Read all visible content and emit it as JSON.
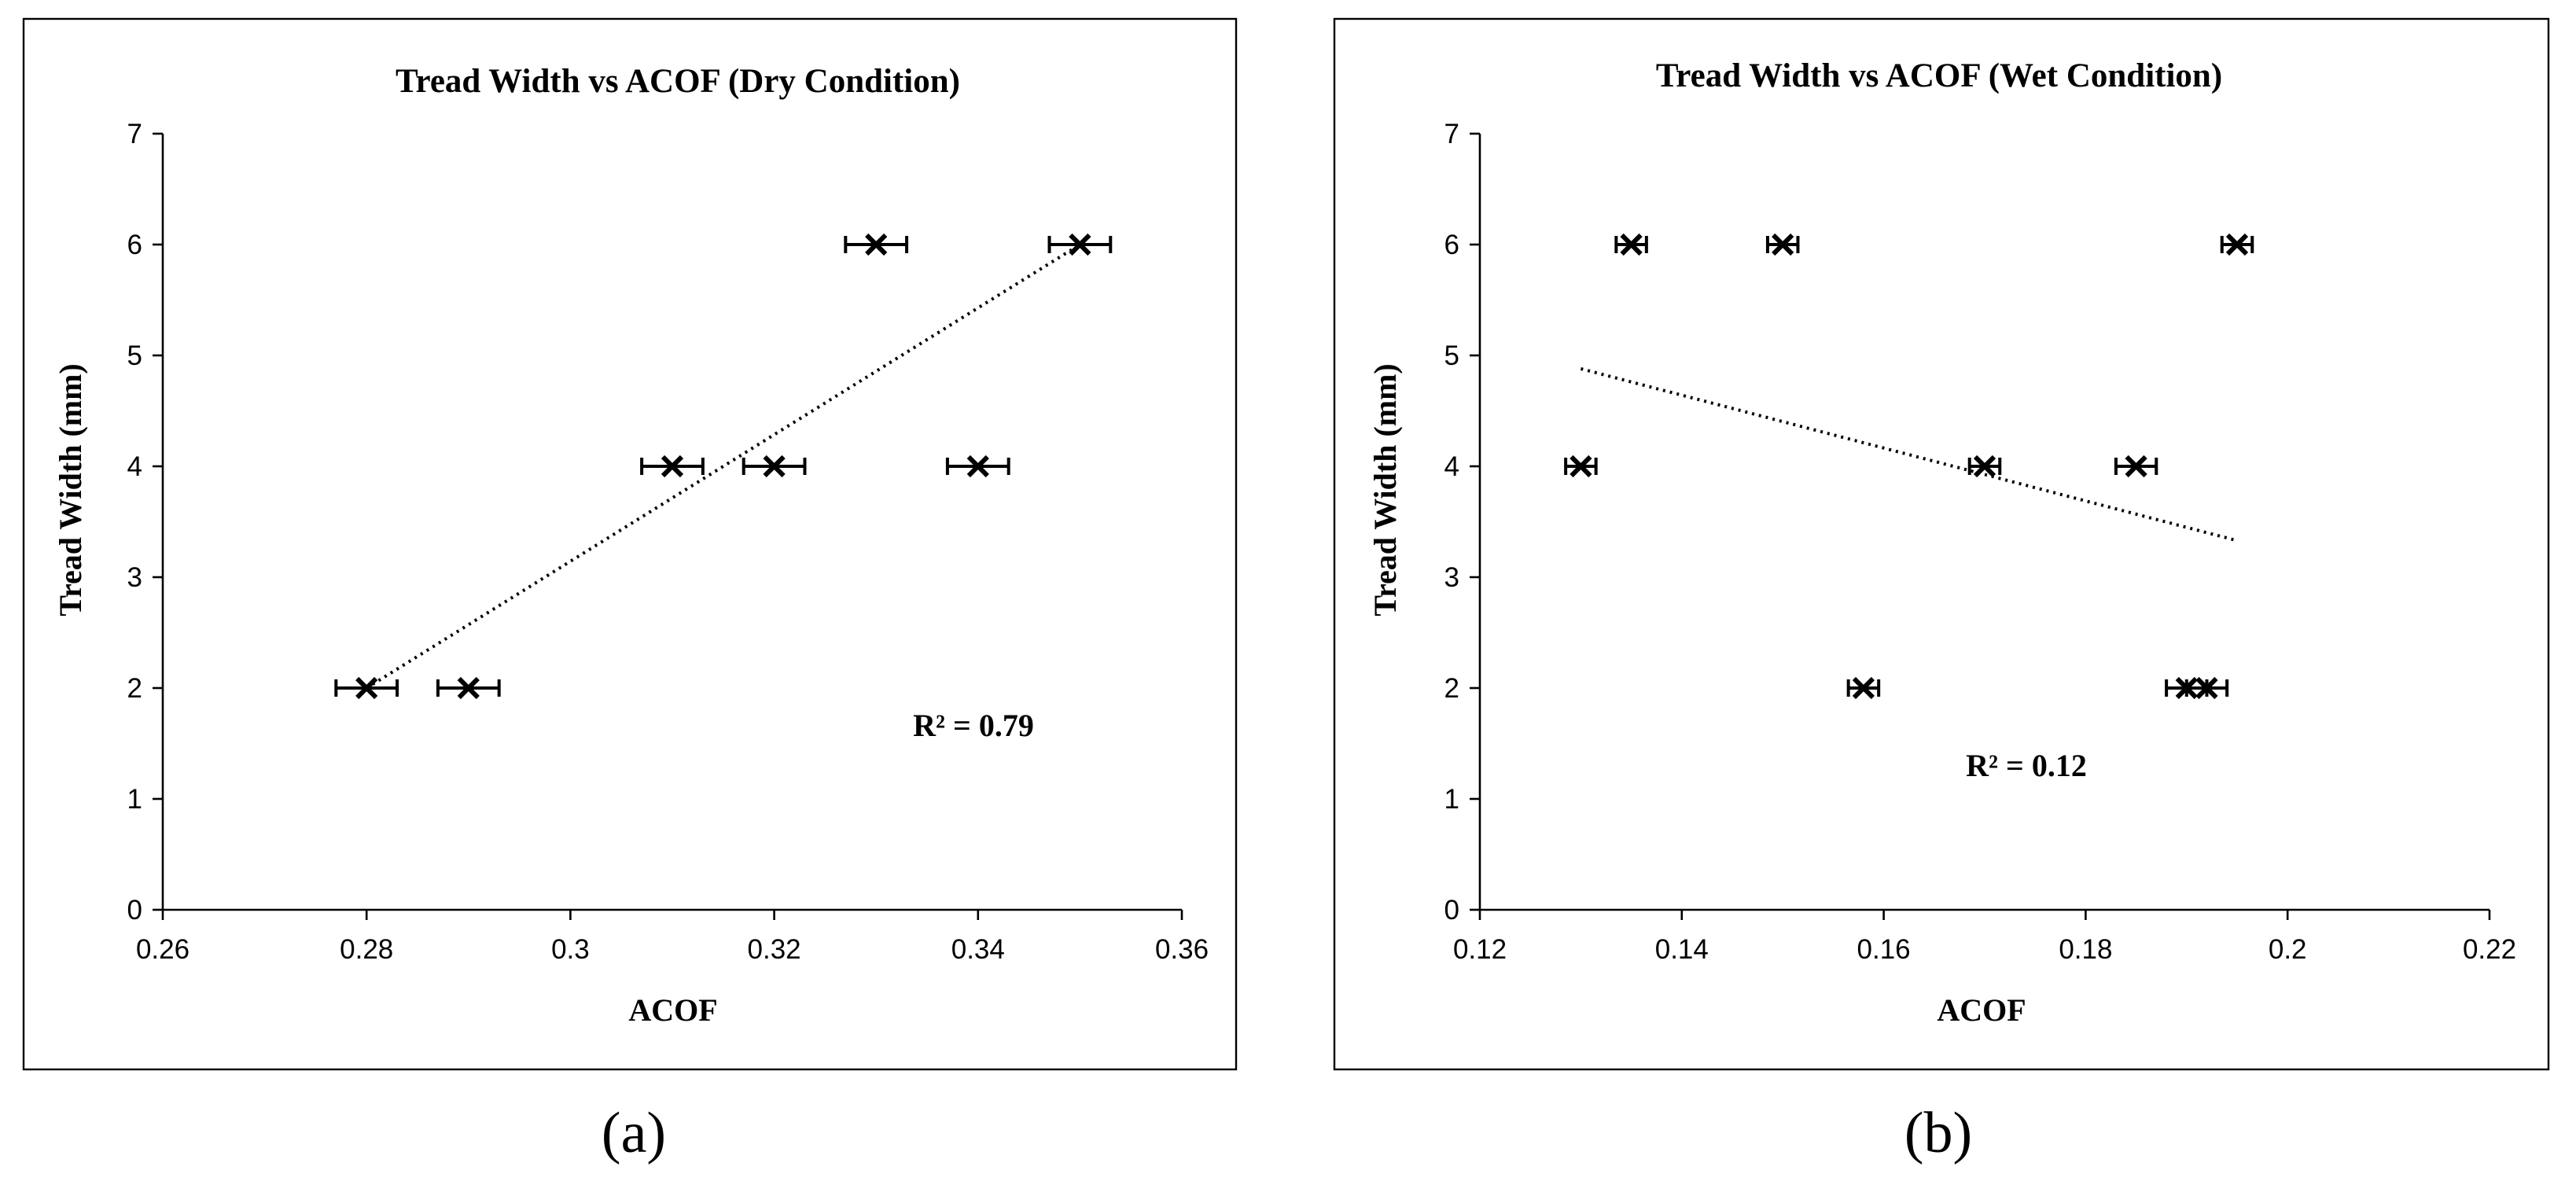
{
  "chart_data": [
    {
      "type": "scatter",
      "title": "Tread Width vs ACOF (Dry Condition)",
      "xlabel": "ACOF",
      "ylabel": "Tread Width (mm)",
      "xlim": [
        0.26,
        0.36
      ],
      "ylim": [
        0,
        7
      ],
      "xticks": [
        "0.26",
        "0.28",
        "0.3",
        "0.32",
        "0.34",
        "0.36"
      ],
      "yticks": [
        "0",
        "1",
        "2",
        "3",
        "4",
        "5",
        "6",
        "7"
      ],
      "points": [
        {
          "x": 0.28,
          "y": 2,
          "xerr": 0.003
        },
        {
          "x": 0.29,
          "y": 2,
          "xerr": 0.003
        },
        {
          "x": 0.31,
          "y": 4,
          "xerr": 0.003
        },
        {
          "x": 0.32,
          "y": 4,
          "xerr": 0.003
        },
        {
          "x": 0.34,
          "y": 4,
          "xerr": 0.003
        },
        {
          "x": 0.33,
          "y": 6,
          "xerr": 0.003
        },
        {
          "x": 0.35,
          "y": 6,
          "xerr": 0.003
        }
      ],
      "trendline": {
        "x": [
          0.28,
          0.35
        ],
        "y": [
          2.0,
          6.0
        ]
      },
      "r_squared": "R² = 0.79",
      "caption": "(a)"
    },
    {
      "type": "scatter",
      "title": "Tread Width vs ACOF (Wet Condition)",
      "xlabel": "ACOF",
      "ylabel": "Tread Width (mm)",
      "xlim": [
        0.12,
        0.22
      ],
      "ylim": [
        0,
        7
      ],
      "xticks": [
        "0.12",
        "0.14",
        "0.16",
        "0.18",
        "0.2",
        "0.22"
      ],
      "yticks": [
        "0",
        "1",
        "2",
        "3",
        "4",
        "5",
        "6",
        "7"
      ],
      "points": [
        {
          "x": 0.13,
          "y": 4,
          "xerr": 0.0015
        },
        {
          "x": 0.135,
          "y": 6,
          "xerr": 0.0015
        },
        {
          "x": 0.15,
          "y": 6,
          "xerr": 0.0015
        },
        {
          "x": 0.158,
          "y": 2,
          "xerr": 0.0015
        },
        {
          "x": 0.17,
          "y": 4,
          "xerr": 0.0015
        },
        {
          "x": 0.185,
          "y": 4,
          "xerr": 0.002
        },
        {
          "x": 0.19,
          "y": 2,
          "xerr": 0.002
        },
        {
          "x": 0.192,
          "y": 2,
          "xerr": 0.002
        },
        {
          "x": 0.195,
          "y": 6,
          "xerr": 0.0015
        }
      ],
      "trendline": {
        "x": [
          0.13,
          0.195
        ],
        "y": [
          4.88,
          3.33
        ]
      },
      "r_squared": "R² = 0.12",
      "caption": "(b)"
    }
  ]
}
